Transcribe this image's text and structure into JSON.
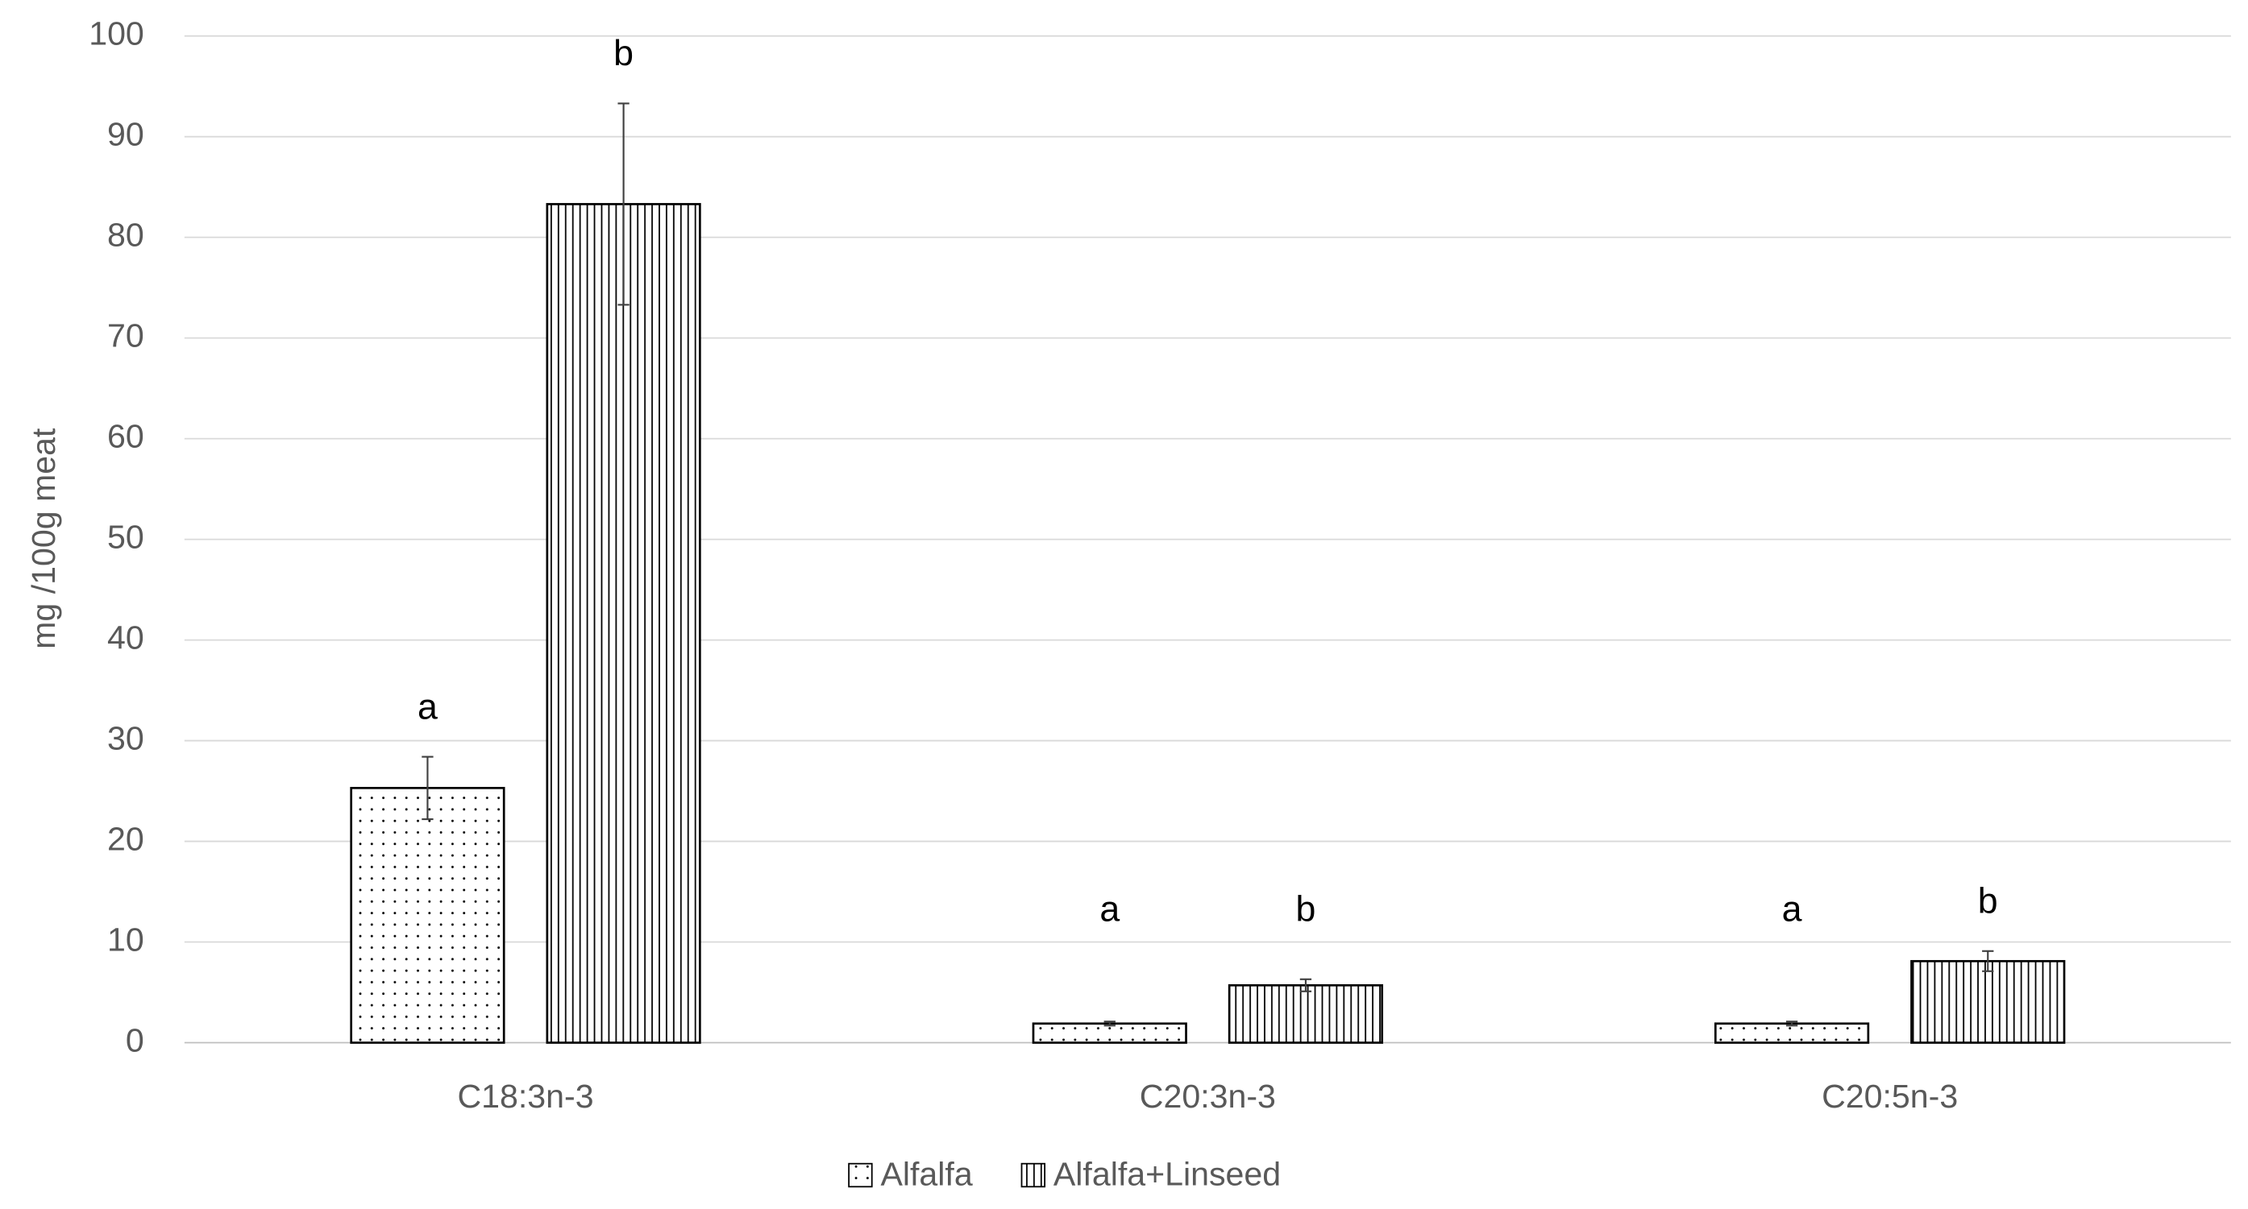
{
  "chart_data": {
    "type": "bar",
    "y_label": "mg /100g meat",
    "categories": [
      "C18:3n-3",
      "C20:3n-3",
      "C20:5n-3"
    ],
    "series": [
      {
        "name": "Alfalfa",
        "color": "#000000",
        "pattern": "dots",
        "values": [
          25.3,
          1.9,
          1.9
        ],
        "errors": [
          3.1,
          0.2,
          0.2
        ],
        "significance": [
          "a",
          "a",
          "a"
        ]
      },
      {
        "name": "Alfalfa+Linseed",
        "color": "#000000",
        "pattern": "vertical-lines",
        "values": [
          83.3,
          5.7,
          8.1
        ],
        "errors": [
          10,
          0.6,
          1.0
        ],
        "significance": [
          "b",
          "b",
          "b"
        ]
      }
    ],
    "ylim": [
      0,
      100
    ],
    "yticks": [
      0,
      10,
      20,
      30,
      40,
      50,
      60,
      70,
      80,
      90,
      100
    ],
    "grid": true,
    "legend": "bottom"
  }
}
